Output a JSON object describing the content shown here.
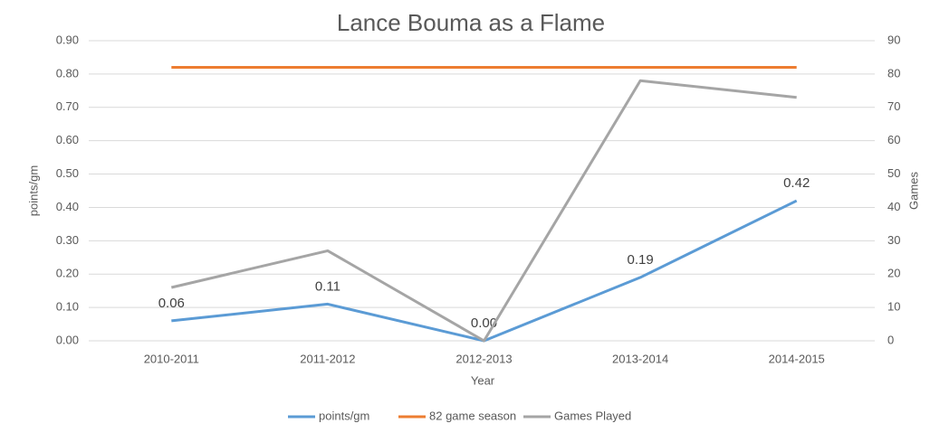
{
  "chart_data": {
    "type": "line",
    "title": "Lance Bouma as a Flame",
    "categories": [
      "2010-2011",
      "2011-2012",
      "2012-2013",
      "2013-2014",
      "2014-2015"
    ],
    "x_label": "Year",
    "y_label": "points/gm",
    "y2_label": "Games",
    "ylim": [
      0,
      0.9
    ],
    "yticks": [
      {
        "value": 0,
        "label": "0.00"
      },
      {
        "value": 0.1,
        "label": "0.10"
      },
      {
        "value": 0.2,
        "label": "0.20"
      },
      {
        "value": 0.3,
        "label": "0.30"
      },
      {
        "value": 0.4,
        "label": "0.40"
      },
      {
        "value": 0.5,
        "label": "0.50"
      },
      {
        "value": 0.6,
        "label": "0.60"
      },
      {
        "value": 0.7,
        "label": "0.70"
      },
      {
        "value": 0.8,
        "label": "0.80"
      },
      {
        "value": 0.9,
        "label": "0.90"
      }
    ],
    "y2lim": [
      0,
      90
    ],
    "y2ticks": [
      0,
      10,
      20,
      30,
      40,
      50,
      60,
      70,
      80,
      90
    ],
    "grid": true,
    "legend": "bottom",
    "series": [
      {
        "name": "points/gm",
        "color": "#5b9bd5",
        "values": [
          0.06,
          0.11,
          0,
          0.19,
          0.42
        ],
        "value_labels": [
          "0.06",
          "0.11",
          "0.00",
          "0.19",
          "0.42"
        ]
      },
      {
        "name": "82 game season",
        "color": "#ed7d31",
        "axis": "y2",
        "values": [
          82,
          82,
          82,
          82,
          82
        ]
      },
      {
        "name": "Games Played",
        "color": "#a5a5a5",
        "axis": "y2",
        "values": [
          16,
          27,
          0,
          78,
          73
        ]
      }
    ]
  }
}
